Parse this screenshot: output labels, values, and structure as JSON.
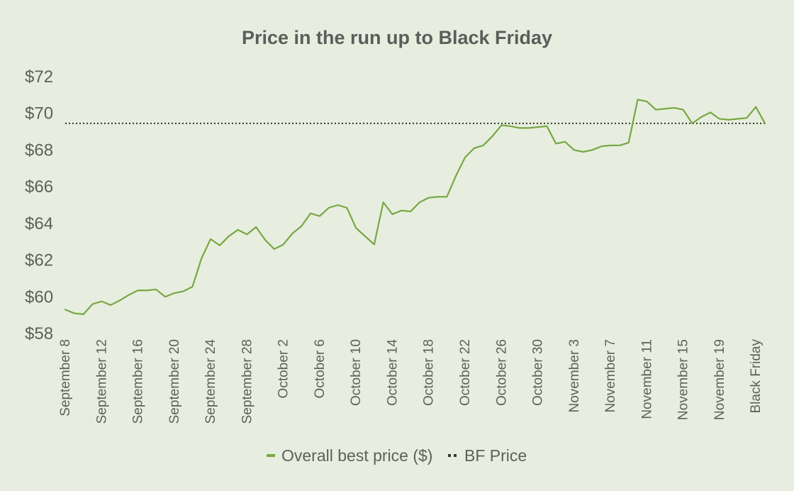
{
  "chart_data": {
    "type": "line",
    "title": "Price in the run up to Black Friday",
    "xlabel": "",
    "ylabel": "",
    "ylim": [
      58,
      72
    ],
    "y_ticks": [
      58,
      60,
      62,
      64,
      66,
      68,
      70,
      72
    ],
    "y_tick_labels": [
      "$58",
      "$60",
      "$62",
      "$64",
      "$66",
      "$68",
      "$70",
      "$72"
    ],
    "x_tick_labels": [
      "September 8",
      "September 12",
      "September 16",
      "September 20",
      "September 24",
      "September 28",
      "October 2",
      "October 6",
      "October 10",
      "October 14",
      "October 18",
      "October 22",
      "October 26",
      "October 30",
      "November 3",
      "November 7",
      "November 11",
      "November 15",
      "November 19",
      "Black Friday"
    ],
    "x_tick_interval_days": 4,
    "grid": false,
    "legend_position": "bottom",
    "series": [
      {
        "name": "Overall best price ($)",
        "style": "solid",
        "color": "#79a644",
        "values": [
          59.3,
          59.1,
          59.05,
          59.6,
          59.75,
          59.55,
          59.8,
          60.1,
          60.35,
          60.35,
          60.4,
          60.0,
          60.2,
          60.3,
          60.55,
          62.1,
          63.15,
          62.8,
          63.3,
          63.65,
          63.4,
          63.8,
          63.1,
          62.6,
          62.85,
          63.45,
          63.85,
          64.55,
          64.4,
          64.85,
          65.0,
          64.85,
          63.75,
          63.3,
          62.85,
          65.15,
          64.5,
          64.7,
          64.65,
          65.15,
          65.4,
          65.45,
          65.45,
          66.6,
          67.6,
          68.1,
          68.25,
          68.75,
          69.35,
          69.3,
          69.2,
          69.2,
          69.25,
          69.3,
          68.35,
          68.45,
          68.0,
          67.9,
          68.0,
          68.2,
          68.25,
          68.25,
          68.4,
          70.75,
          70.65,
          70.2,
          70.25,
          70.3,
          70.2,
          69.45,
          69.8,
          70.05,
          69.7,
          69.65,
          69.7,
          69.75,
          70.35,
          69.45
        ]
      },
      {
        "name": "BF Price",
        "style": "dotted",
        "color": "#2f3a2a",
        "value": 69.45
      }
    ]
  }
}
